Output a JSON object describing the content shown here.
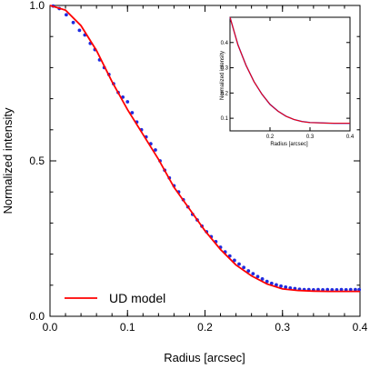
{
  "chart_data": [
    {
      "type": "scatter",
      "xlabel": "Radius [arcsec]",
      "ylabel": "Normalized intensity",
      "xlim": [
        0.0,
        0.4
      ],
      "ylim": [
        0.0,
        1.0
      ],
      "x_ticks": [
        0.0,
        0.1,
        0.2,
        0.3,
        0.4
      ],
      "x_tick_labels": [
        "0.0",
        "0.1",
        "0.2",
        "0.3",
        "0.4"
      ],
      "y_ticks": [
        0.0,
        0.5,
        1.0
      ],
      "y_tick_labels": [
        "0.0",
        "0.5",
        "1.0"
      ],
      "legend": {
        "placement": "bottom-left",
        "entries": [
          "UD model"
        ]
      },
      "colors": {
        "data": "#1f2be0",
        "model": "#ff0000"
      },
      "series": [
        {
          "kind": "points",
          "x": [
            0.004,
            0.012,
            0.021,
            0.03,
            0.038,
            0.045,
            0.052,
            0.058,
            0.064,
            0.07,
            0.076,
            0.082,
            0.088,
            0.094,
            0.1,
            0.106,
            0.112,
            0.118,
            0.124,
            0.13,
            0.136,
            0.142,
            0.148,
            0.154,
            0.16,
            0.166,
            0.172,
            0.178,
            0.184,
            0.19,
            0.196,
            0.202,
            0.208,
            0.214,
            0.22,
            0.226,
            0.232,
            0.238,
            0.244,
            0.25,
            0.256,
            0.262,
            0.268,
            0.274,
            0.28,
            0.286,
            0.292,
            0.298,
            0.304,
            0.31,
            0.316,
            0.322,
            0.328,
            0.334,
            0.34,
            0.346,
            0.352,
            0.358,
            0.364,
            0.37,
            0.376,
            0.382,
            0.388,
            0.394,
            0.399
          ],
          "y": [
            0.998,
            0.99,
            0.97,
            0.945,
            0.92,
            0.905,
            0.878,
            0.858,
            0.825,
            0.8,
            0.778,
            0.748,
            0.72,
            0.705,
            0.69,
            0.655,
            0.625,
            0.6,
            0.577,
            0.555,
            0.535,
            0.5,
            0.47,
            0.445,
            0.42,
            0.4,
            0.375,
            0.352,
            0.328,
            0.31,
            0.29,
            0.272,
            0.256,
            0.24,
            0.222,
            0.207,
            0.194,
            0.18,
            0.168,
            0.157,
            0.146,
            0.137,
            0.128,
            0.12,
            0.112,
            0.106,
            0.101,
            0.097,
            0.094,
            0.091,
            0.089,
            0.087,
            0.086,
            0.086,
            0.085,
            0.086,
            0.085,
            0.086,
            0.085,
            0.085,
            0.086,
            0.085,
            0.086,
            0.086,
            0.086
          ]
        },
        {
          "kind": "line",
          "name": "UD model",
          "x": [
            0.0,
            0.02,
            0.04,
            0.06,
            0.08,
            0.1,
            0.12,
            0.14,
            0.16,
            0.18,
            0.2,
            0.22,
            0.24,
            0.26,
            0.28,
            0.3,
            0.32,
            0.34,
            0.36,
            0.38,
            0.4
          ],
          "y": [
            1.0,
            0.985,
            0.935,
            0.855,
            0.755,
            0.665,
            0.585,
            0.505,
            0.415,
            0.345,
            0.275,
            0.215,
            0.165,
            0.13,
            0.104,
            0.088,
            0.083,
            0.081,
            0.08,
            0.08,
            0.08
          ]
        }
      ]
    },
    {
      "type": "line",
      "xlabel": "Radius [arcsec]",
      "ylabel": "Normalized intensity",
      "xlim": [
        0.1,
        0.4
      ],
      "ylim": [
        0.05,
        0.5
      ],
      "x_ticks": [
        0.2,
        0.3,
        0.4
      ],
      "x_tick_labels": [
        "0.2",
        "0.3",
        "0.4"
      ],
      "y_ticks": [
        0.1,
        0.2,
        0.3,
        0.4
      ],
      "y_tick_labels": [
        "0.1",
        "0.2",
        "0.3",
        "0.4"
      ],
      "series": [
        {
          "kind": "line",
          "x": [
            0.1,
            0.12,
            0.14,
            0.16,
            0.18,
            0.2,
            0.22,
            0.24,
            0.26,
            0.28,
            0.3,
            0.32,
            0.34,
            0.36,
            0.38,
            0.4
          ],
          "y": [
            0.5,
            0.39,
            0.31,
            0.245,
            0.195,
            0.155,
            0.128,
            0.108,
            0.095,
            0.087,
            0.083,
            0.082,
            0.081,
            0.08,
            0.08,
            0.08
          ]
        }
      ]
    }
  ]
}
